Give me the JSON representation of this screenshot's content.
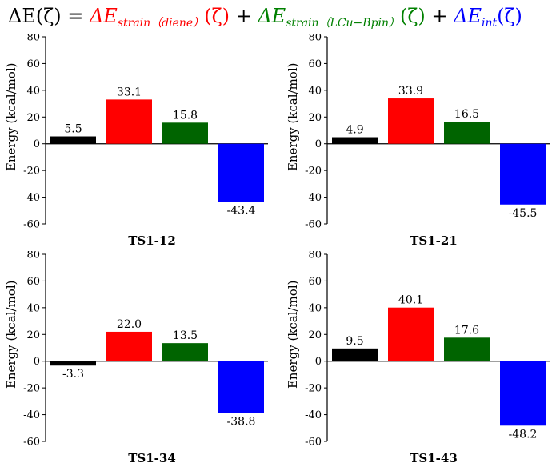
{
  "equation": {
    "lhs": "ΔE(ζ) =",
    "term1_main": "ΔE",
    "term1_sub": "strain（diene）",
    "term1_arg": "(ζ)",
    "plus1": "+",
    "term2_main": "ΔE",
    "term2_sub": "strain（LCu−Bpin）",
    "term2_arg": "(ζ)",
    "plus2": "+",
    "term3_main": "ΔE",
    "term3_sub": "int",
    "term3_arg": "(ζ)",
    "colors": {
      "lhs": "#000000",
      "term1": "#ff0000",
      "term2": "#008000",
      "term3": "#0000ff"
    }
  },
  "chart_data": [
    {
      "type": "bar",
      "title": "TS1-12",
      "ylabel": "Energy  (kcal/mol)",
      "ylim": [
        -60,
        80
      ],
      "yticks": [
        -60,
        -40,
        -20,
        0,
        20,
        40,
        60,
        80
      ],
      "values": [
        5.5,
        33.1,
        15.8,
        -43.4
      ],
      "labels": [
        "5.5",
        "33.1",
        "15.8",
        "-43.4"
      ],
      "colors": [
        "#000000",
        "#ff0000",
        "#006400",
        "#0000ff"
      ]
    },
    {
      "type": "bar",
      "title": "TS1-21",
      "ylabel": "Energy  (kcal/mol)",
      "ylim": [
        -60,
        80
      ],
      "yticks": [
        -60,
        -40,
        -20,
        0,
        20,
        40,
        60,
        80
      ],
      "values": [
        4.9,
        33.9,
        16.5,
        -45.5
      ],
      "labels": [
        "4.9",
        "33.9",
        "16.5",
        "-45.5"
      ],
      "colors": [
        "#000000",
        "#ff0000",
        "#006400",
        "#0000ff"
      ]
    },
    {
      "type": "bar",
      "title": "TS1-34",
      "ylabel": "Energy  (kcal/mol)",
      "ylim": [
        -60,
        80
      ],
      "yticks": [
        -60,
        -40,
        -20,
        0,
        20,
        40,
        60,
        80
      ],
      "values": [
        -3.3,
        22.0,
        13.5,
        -38.8
      ],
      "labels": [
        "-3.3",
        "22.0",
        "13.5",
        "-38.8"
      ],
      "colors": [
        "#000000",
        "#ff0000",
        "#006400",
        "#0000ff"
      ]
    },
    {
      "type": "bar",
      "title": "TS1-43",
      "ylabel": "Energy  (kcal/mol)",
      "ylim": [
        -60,
        80
      ],
      "yticks": [
        -60,
        -40,
        -20,
        0,
        20,
        40,
        60,
        80
      ],
      "values": [
        9.5,
        40.1,
        17.6,
        -48.2
      ],
      "labels": [
        "9.5",
        "40.1",
        "17.6",
        "-48.2"
      ],
      "colors": [
        "#000000",
        "#ff0000",
        "#006400",
        "#0000ff"
      ]
    }
  ]
}
